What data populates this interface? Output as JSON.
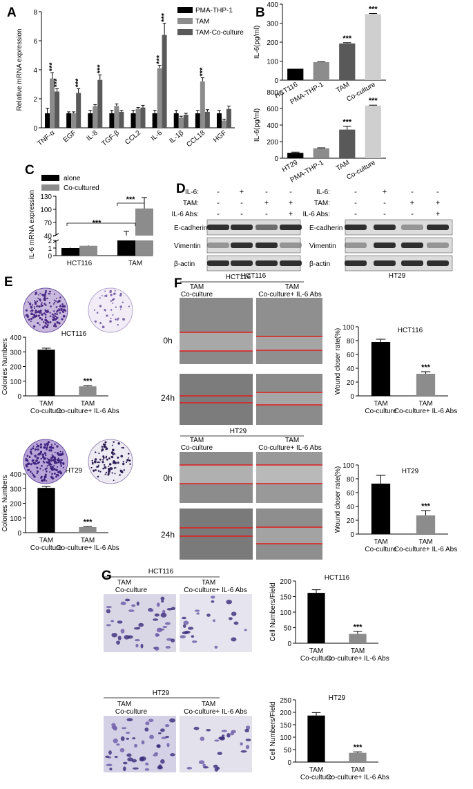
{
  "panels": {
    "A": "A",
    "B": "B",
    "C": "C",
    "D": "D",
    "E": "E",
    "F": "F",
    "G": "G"
  },
  "sig": "***",
  "colors": {
    "black": "#000000",
    "gray": "#8c8c8c",
    "dark_gray": "#595959",
    "light_gray": "#cfcfcf",
    "red_line": "#e21b1b"
  },
  "chart_data": [
    {
      "id": "A",
      "type": "bar",
      "ylabel": "Relative mRNA expression",
      "ylim": [
        0,
        8
      ],
      "yticks": [
        0,
        2,
        4,
        6,
        8
      ],
      "categories": [
        "TNF-α",
        "EGF",
        "IL-8",
        "TGF-β",
        "CCL2",
        "IL-6",
        "IL-1β",
        "CCL18",
        "HGF"
      ],
      "series": [
        {
          "name": "PMA-THP-1",
          "values": [
            1.0,
            1.0,
            1.0,
            1.0,
            1.0,
            1.0,
            1.0,
            1.0,
            1.0
          ],
          "err": [
            0.35,
            0.1,
            0.2,
            0.2,
            0.2,
            0.2,
            0.2,
            0.2,
            0.2
          ]
        },
        {
          "name": "TAM",
          "values": [
            3.4,
            1.0,
            1.5,
            1.5,
            1.3,
            4.1,
            0.7,
            3.2,
            0.5
          ],
          "err": [
            0.4,
            0.1,
            0.1,
            0.15,
            0.1,
            0.2,
            0.1,
            0.25,
            0.1
          ]
        },
        {
          "name": "TAM-Co-culture",
          "values": [
            2.5,
            2.4,
            3.3,
            1.1,
            1.4,
            6.4,
            0.9,
            1.1,
            1.3
          ],
          "err": [
            0.2,
            0.3,
            0.35,
            0.1,
            0.15,
            0.8,
            0.1,
            0.15,
            0.2
          ]
        }
      ],
      "sig_marks": [
        {
          "category": "TNF-α",
          "series": "TAM"
        },
        {
          "category": "TNF-α",
          "series": "TAM-Co-culture"
        },
        {
          "category": "EGF",
          "series": "TAM-Co-culture"
        },
        {
          "category": "IL-8",
          "series": "TAM-Co-culture"
        },
        {
          "category": "IL-6",
          "series": "TAM"
        },
        {
          "category": "IL-6",
          "series": "TAM-Co-culture"
        },
        {
          "category": "CCL18",
          "series": "TAM"
        }
      ],
      "legend": "top-right"
    },
    {
      "id": "B1",
      "type": "bar",
      "ylabel": "IL-6(pg/ml)",
      "ylim": [
        0,
        400
      ],
      "yticks": [
        0,
        100,
        200,
        300,
        400
      ],
      "categories": [
        "HCT116",
        "PMA-THP-1",
        "TAM",
        "Co-culture"
      ],
      "values": [
        60,
        95,
        193,
        348
      ],
      "err": [
        0,
        2,
        4,
        3
      ],
      "sig": [
        "",
        "",
        "***",
        "***"
      ]
    },
    {
      "id": "B2",
      "type": "bar",
      "ylabel": "IL-6(pg/ml)",
      "ylim": [
        0,
        800
      ],
      "yticks": [
        0,
        200,
        400,
        600,
        800
      ],
      "categories": [
        "HT29",
        "PMA-THP-1",
        "TAM",
        "Co-culture"
      ],
      "values": [
        65,
        120,
        345,
        635
      ],
      "err": [
        8,
        5,
        40,
        5
      ],
      "sig": [
        "",
        "",
        "***",
        "***"
      ]
    },
    {
      "id": "C",
      "type": "bar",
      "ylabel": "IL-6 mRNA expression",
      "yticks_upper": [
        40,
        70,
        100,
        130
      ],
      "yticks_lower": [
        0,
        1,
        2
      ],
      "categories": [
        "HCT116",
        "TAM"
      ],
      "series": [
        {
          "name": "alone",
          "values": [
            1.0,
            40
          ],
          "err": [
            0.05,
            10
          ]
        },
        {
          "name": "Co-cultured",
          "values": [
            1.3,
            102
          ],
          "err": [
            0.05,
            25
          ]
        }
      ],
      "legend": "top-left"
    },
    {
      "id": "E1",
      "type": "bar",
      "title": "HCT116",
      "ylabel": "Colonies Numbers",
      "ylim": [
        0,
        400
      ],
      "yticks": [
        0,
        100,
        200,
        300,
        400
      ],
      "categories": [
        "TAM\nCo-culture",
        "TAM\nCo-culture+ IL-6 Abs"
      ],
      "values": [
        315,
        65
      ],
      "err": [
        10,
        5
      ],
      "sig": [
        "",
        "***"
      ]
    },
    {
      "id": "E2",
      "type": "bar",
      "title": "HT29",
      "ylabel": "Colonies Numbers",
      "ylim": [
        0,
        400
      ],
      "yticks": [
        0,
        100,
        200,
        300,
        400
      ],
      "categories": [
        "TAM\nCo-culture",
        "TAM\nCo-culture+ IL-6 Abs"
      ],
      "values": [
        305,
        38
      ],
      "err": [
        10,
        4
      ],
      "sig": [
        "",
        "***"
      ]
    },
    {
      "id": "F1",
      "type": "bar",
      "title": "HCT116",
      "ylabel": "Wound closer rate(%)",
      "ylim": [
        0,
        100
      ],
      "yticks": [
        0,
        20,
        40,
        60,
        80,
        100
      ],
      "categories": [
        "TAM\nCo-culture",
        "TAM\nCo-culture+ IL-6 Abs"
      ],
      "values": [
        78,
        32
      ],
      "err": [
        4,
        3
      ],
      "sig": [
        "",
        "***"
      ]
    },
    {
      "id": "F2",
      "type": "bar",
      "title": "HT29",
      "ylabel": "Wound closer rate(%)",
      "ylim": [
        0,
        100
      ],
      "yticks": [
        0,
        20,
        40,
        60,
        80,
        100
      ],
      "categories": [
        "TAM\nCo-culture",
        "TAM\nCo-culture+ IL-6 Abs"
      ],
      "values": [
        73,
        27
      ],
      "err": [
        12,
        7
      ],
      "sig": [
        "",
        "***"
      ]
    },
    {
      "id": "G1",
      "type": "bar",
      "title": "HCT116",
      "ylabel": "Cell Numbers/Field",
      "ylim": [
        0,
        200
      ],
      "yticks": [
        0,
        50,
        100,
        150,
        200
      ],
      "categories": [
        "TAM\nCo-culture",
        "TAM\nCo-culture+ IL-6 Abs"
      ],
      "values": [
        162,
        30
      ],
      "err": [
        10,
        8
      ],
      "sig": [
        "",
        "***"
      ]
    },
    {
      "id": "G2",
      "type": "bar",
      "title": "HT29",
      "ylabel": "Cell Numbers/Field",
      "ylim": [
        0,
        250
      ],
      "yticks": [
        0,
        50,
        100,
        150,
        200,
        250
      ],
      "categories": [
        "TAM\nCo-culture",
        "TAM\nCo-culture+ IL-6 Abs"
      ],
      "values": [
        187,
        37
      ],
      "err": [
        12,
        4
      ],
      "sig": [
        "",
        "***"
      ]
    }
  ],
  "western_blot": {
    "header_labels": [
      "IL-6:",
      "TAM:",
      "IL-6 Abs:"
    ],
    "lanes": [
      [
        "-",
        "+",
        "-",
        "-"
      ],
      [
        "-",
        "-",
        "+",
        "+"
      ],
      [
        "-",
        "-",
        "-",
        "+"
      ]
    ],
    "bands": [
      "E-cadherin",
      "Vimentin",
      "β-actin"
    ],
    "cell_lines": [
      "HCT116",
      "HT29"
    ]
  },
  "micrographs": {
    "groups": [
      "TAM\nCo-culture",
      "TAM\nCo-culture+ IL-6 Abs"
    ],
    "cell_lines": [
      "HCT116",
      "HT29"
    ],
    "timepoints": [
      "0h",
      "24h"
    ]
  }
}
